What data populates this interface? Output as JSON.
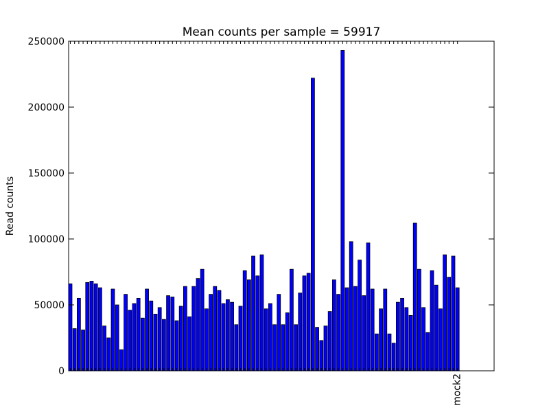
{
  "chart_data": {
    "type": "bar",
    "title": "Mean counts per sample = 59917",
    "ylabel": "Read counts",
    "categories": [
      null,
      null,
      null,
      null,
      null,
      null,
      null,
      null,
      null,
      null,
      null,
      null,
      null,
      null,
      null,
      null,
      null,
      null,
      null,
      null,
      null,
      null,
      null,
      null,
      null,
      null,
      null,
      null,
      null,
      null,
      null,
      null,
      null,
      null,
      null,
      null,
      null,
      null,
      null,
      null,
      null,
      null,
      null,
      null,
      null,
      null,
      null,
      null,
      null,
      null,
      null,
      null,
      null,
      null,
      null,
      null,
      null,
      null,
      null,
      null,
      null,
      null,
      null,
      null,
      null,
      null,
      null,
      null,
      null,
      null,
      null,
      null,
      null,
      null,
      null,
      null,
      null,
      null,
      null,
      null,
      null,
      null,
      null,
      null,
      null,
      null,
      null,
      null,
      null,
      null,
      null,
      "mock2"
    ],
    "values": [
      66000,
      32000,
      55000,
      31000,
      67000,
      68000,
      66000,
      63000,
      34000,
      25000,
      62000,
      50000,
      16000,
      58000,
      46000,
      51000,
      55000,
      40000,
      62000,
      53000,
      43000,
      48000,
      39000,
      57000,
      56000,
      38000,
      49000,
      64000,
      41000,
      64000,
      70000,
      77000,
      47000,
      58000,
      64000,
      61000,
      51000,
      54000,
      52000,
      35000,
      49000,
      76000,
      69000,
      87000,
      72000,
      88000,
      47000,
      51000,
      35000,
      58000,
      35000,
      44000,
      77000,
      35000,
      59000,
      72000,
      74000,
      222000,
      33000,
      23000,
      34000,
      45000,
      69000,
      58000,
      243000,
      63000,
      98000,
      64000,
      84000,
      57000,
      97000,
      62000,
      28000,
      47000,
      62000,
      28000,
      21000,
      52000,
      55000,
      48000,
      42000,
      112000,
      77000,
      48000,
      29000,
      76000,
      65000,
      47000,
      88000,
      71000,
      87000,
      63000
    ],
    "color": "#0000ff",
    "xlim": [
      0,
      100
    ],
    "ylim": [
      0,
      250000
    ],
    "yticks": [
      0,
      50000,
      100000,
      150000,
      200000,
      250000
    ]
  }
}
